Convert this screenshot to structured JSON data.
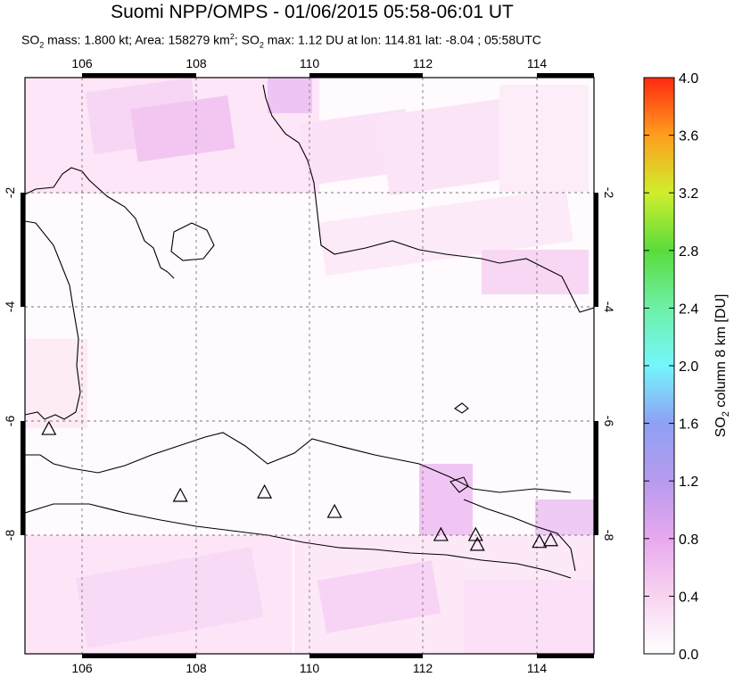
{
  "header": {
    "title": "Suomi NPP/OMPS - 01/06/2015 05:58-06:01 UT",
    "subtitle": {
      "p1": "SO",
      "p1_sub": "2",
      "p2": " mass: 1.800 kt; Area: 158279 km",
      "p2_sup": "2",
      "p3": "; SO",
      "p3_sub": "2",
      "p4": " max: 1.12 DU at lon: 114.81 lat: -8.04 ; 05:58UTC"
    }
  },
  "map": {
    "lon_ticks": [
      "106",
      "108",
      "110",
      "112",
      "114"
    ],
    "lat_ticks": [
      "-2",
      "-4",
      "-6",
      "-8"
    ],
    "lon_range": [
      105,
      115
    ],
    "lat_range": [
      -10,
      0
    ],
    "grid": true,
    "volcanoes": [
      {
        "lon": 105.42,
        "lat": -6.1
      },
      {
        "lon": 107.73,
        "lat": -7.26
      },
      {
        "lon": 109.21,
        "lat": -7.2
      },
      {
        "lon": 110.44,
        "lat": -7.54
      },
      {
        "lon": 112.31,
        "lat": -7.94
      },
      {
        "lon": 112.92,
        "lat": -7.94
      },
      {
        "lon": 112.95,
        "lat": -8.11
      },
      {
        "lon": 114.04,
        "lat": -8.06
      },
      {
        "lon": 114.24,
        "lat": -8.03
      }
    ],
    "colors": {
      "land_line": "#000000",
      "grid": "#777777",
      "so2_light": "#fce6f6",
      "so2_med": "#f0c2f5"
    }
  },
  "colorbar": {
    "label_main": "SO",
    "label_sub": "2",
    "label_rest": " column 8 km [DU]",
    "ticks": [
      "0.0",
      "0.4",
      "0.8",
      "1.2",
      "1.6",
      "2.0",
      "2.4",
      "2.8",
      "3.2",
      "3.6",
      "4.0"
    ],
    "range": [
      0,
      4
    ]
  }
}
